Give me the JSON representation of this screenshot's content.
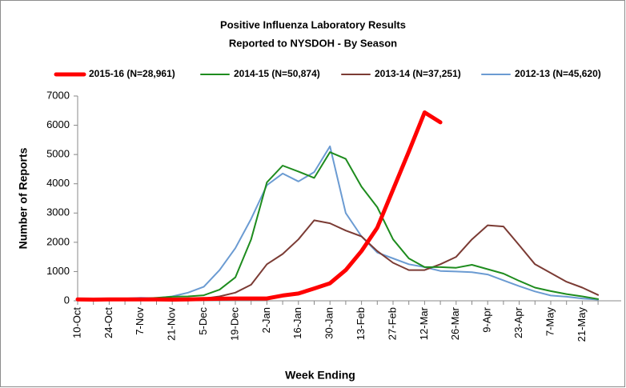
{
  "chart_data": {
    "type": "line",
    "title": [
      "Positive Influenza Laboratory Results",
      "Reported to NYSDOH - By Season"
    ],
    "x_label": "Week Ending",
    "y_label": "Number of Reports",
    "legend": "top",
    "grid": false,
    "categories": [
      "10-Oct",
      null,
      "24-Oct",
      null,
      "7-Nov",
      null,
      "21-Nov",
      null,
      "5-Dec",
      null,
      "19-Dec",
      null,
      "2-Jan",
      null,
      "16-Jan",
      null,
      "30-Jan",
      null,
      "13-Feb",
      null,
      "27-Feb",
      null,
      "12-Mar",
      null,
      "26-Mar",
      null,
      "9-Apr",
      null,
      "23-Apr",
      null,
      "7-May",
      null,
      "21-May",
      null
    ],
    "ylim": [
      0,
      7000
    ],
    "yticks": [
      0,
      1000,
      2000,
      3000,
      4000,
      5000,
      6000,
      7000
    ],
    "series": [
      {
        "name": "2015-16 (N=28,961)",
        "color": "#ff0000",
        "width": 5,
        "values": [
          50,
          40,
          50,
          50,
          50,
          50,
          40,
          50,
          60,
          70,
          80,
          80,
          80,
          180,
          250,
          420,
          600,
          1050,
          1700,
          2500,
          3800,
          5100,
          6440,
          6100,
          null,
          null,
          null,
          null,
          null,
          null,
          null,
          null,
          null,
          null
        ]
      },
      {
        "name": "2014-15 (N=50,874)",
        "color": "#1e8c1e",
        "width": 2,
        "values": [
          50,
          50,
          60,
          60,
          70,
          100,
          140,
          150,
          190,
          380,
          800,
          2100,
          4050,
          4620,
          4420,
          4200,
          5080,
          4850,
          3900,
          3200,
          2100,
          1450,
          1150,
          1150,
          1130,
          1230,
          1080,
          930,
          680,
          450,
          330,
          230,
          150,
          60
        ]
      },
      {
        "name": "2013-14 (N=37,251)",
        "color": "#7b3b34",
        "width": 2,
        "values": [
          50,
          50,
          50,
          50,
          60,
          60,
          60,
          70,
          80,
          150,
          280,
          550,
          1250,
          1600,
          2100,
          2750,
          2650,
          2400,
          2200,
          1700,
          1300,
          1050,
          1050,
          1250,
          1500,
          2100,
          2580,
          2540,
          1900,
          1250,
          950,
          650,
          450,
          200
        ]
      },
      {
        "name": "2012-13 (N=45,620)",
        "color": "#6b9bd2",
        "width": 2,
        "values": [
          30,
          30,
          50,
          80,
          100,
          90,
          150,
          280,
          480,
          1050,
          1800,
          2800,
          3950,
          4350,
          4080,
          4400,
          5280,
          3000,
          2200,
          1650,
          1450,
          1250,
          1150,
          1020,
          1000,
          980,
          900,
          700,
          500,
          320,
          180,
          140,
          80,
          40
        ]
      }
    ]
  }
}
